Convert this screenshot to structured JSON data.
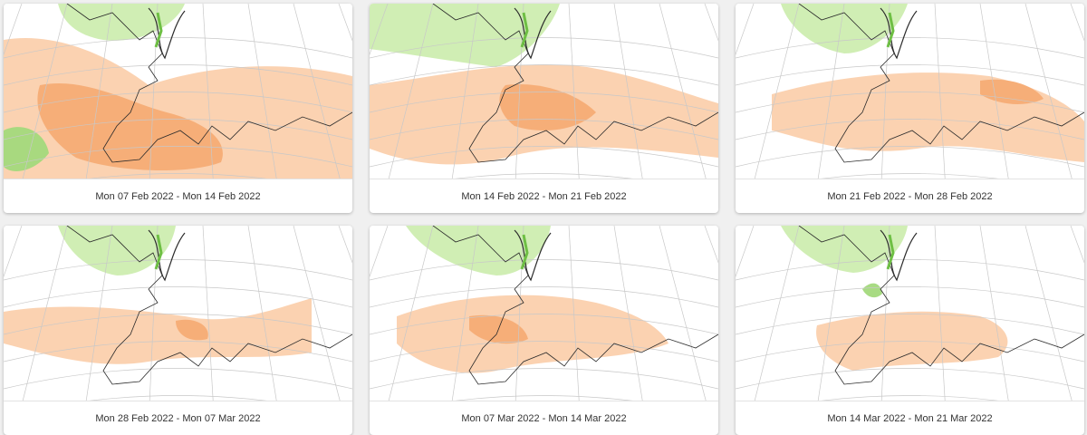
{
  "colors": {
    "background": "#f0f0f0",
    "card": "#ffffff",
    "ocean": "#ffffff",
    "warm_light": "#fbd0ad",
    "warm_mid": "#f6ac75",
    "warm_dark": "#e9834a",
    "wet_light": "#cdedb0",
    "wet_mid": "#a3d97c",
    "wet_dark": "#6ebf44",
    "coast": "#2b2b2b",
    "graticule": "#c8c8c8"
  },
  "forecasts": [
    {
      "label": "Mon 07 Feb 2022 - Mon 14 Feb 2022",
      "icon": "anomaly-map-icon"
    },
    {
      "label": "Mon 14 Feb 2022 - Mon 21 Feb 2022",
      "icon": "anomaly-map-icon"
    },
    {
      "label": "Mon 21 Feb 2022 - Mon 28 Feb 2022",
      "icon": "anomaly-map-icon"
    },
    {
      "label": "Mon 28 Feb 2022 - Mon 07 Mar 2022",
      "icon": "anomaly-map-icon"
    },
    {
      "label": "Mon 07 Mar 2022 - Mon 14 Mar 2022",
      "icon": "anomaly-map-icon"
    },
    {
      "label": "Mon 14 Mar 2022 - Mon 21 Mar 2022",
      "icon": "anomaly-map-icon"
    }
  ]
}
